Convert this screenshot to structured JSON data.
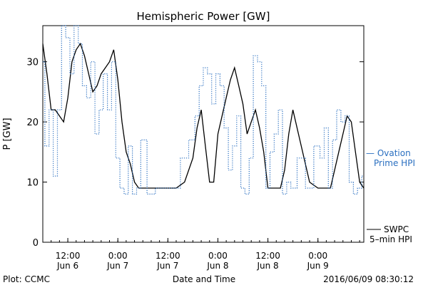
{
  "chart_data": {
    "type": "line",
    "title": "Hemispheric Power [GW]",
    "ylabel": "P [GW]",
    "xlabel": "Date and Time",
    "ylim": [
      0,
      36
    ],
    "yticks": [
      0,
      10,
      20,
      30
    ],
    "xlim": [
      "2016-06-06T06:00",
      "2016-06-09T11:00"
    ],
    "xticks": [
      {
        "time": "2016-06-06T12:00",
        "line1": "12:00",
        "line2": "Jun 6"
      },
      {
        "time": "2016-06-07T00:00",
        "line1": "0:00",
        "line2": "Jun 7"
      },
      {
        "time": "2016-06-07T12:00",
        "line1": "12:00",
        "line2": "Jun 7"
      },
      {
        "time": "2016-06-08T00:00",
        "line1": "0:00",
        "line2": "Jun 8"
      },
      {
        "time": "2016-06-08T12:00",
        "line1": "12:00",
        "line2": "Jun 8"
      },
      {
        "time": "2016-06-09T00:00",
        "line1": "0:00",
        "line2": "Jun 9"
      }
    ],
    "series": [
      {
        "name": "SWPC 5-min HPI",
        "style": "solid",
        "color": "#000000",
        "x": [
          "2016-06-06T06:00",
          "2016-06-06T07:00",
          "2016-06-06T08:00",
          "2016-06-06T09:00",
          "2016-06-06T10:00",
          "2016-06-06T11:00",
          "2016-06-06T12:00",
          "2016-06-06T13:00",
          "2016-06-06T14:00",
          "2016-06-06T15:00",
          "2016-06-06T16:00",
          "2016-06-06T17:00",
          "2016-06-06T18:00",
          "2016-06-06T19:00",
          "2016-06-06T20:00",
          "2016-06-06T21:00",
          "2016-06-06T22:00",
          "2016-06-06T23:00",
          "2016-06-07T00:00",
          "2016-06-07T01:00",
          "2016-06-07T02:00",
          "2016-06-07T03:00",
          "2016-06-07T04:00",
          "2016-06-07T05:00",
          "2016-06-07T06:00",
          "2016-06-07T08:00",
          "2016-06-07T10:00",
          "2016-06-07T12:00",
          "2016-06-07T14:00",
          "2016-06-07T16:00",
          "2016-06-07T18:00",
          "2016-06-07T19:00",
          "2016-06-07T20:00",
          "2016-06-07T21:00",
          "2016-06-07T22:00",
          "2016-06-07T23:00",
          "2016-06-08T00:00",
          "2016-06-08T01:00",
          "2016-06-08T02:00",
          "2016-06-08T03:00",
          "2016-06-08T04:00",
          "2016-06-08T05:00",
          "2016-06-08T06:00",
          "2016-06-08T07:00",
          "2016-06-08T08:00",
          "2016-06-08T09:00",
          "2016-06-08T10:00",
          "2016-06-08T11:00",
          "2016-06-08T12:00",
          "2016-06-08T13:00",
          "2016-06-08T14:00",
          "2016-06-08T15:00",
          "2016-06-08T16:00",
          "2016-06-08T17:00",
          "2016-06-08T18:00",
          "2016-06-08T20:00",
          "2016-06-08T22:00",
          "2016-06-09T00:00",
          "2016-06-09T01:00",
          "2016-06-09T02:00",
          "2016-06-09T03:00",
          "2016-06-09T04:00",
          "2016-06-09T05:00",
          "2016-06-09T06:00",
          "2016-06-09T07:00",
          "2016-06-09T08:00",
          "2016-06-09T09:00",
          "2016-06-09T10:00",
          "2016-06-09T11:00"
        ],
        "values": [
          33,
          28,
          22,
          22,
          21,
          20,
          24,
          30,
          32,
          33,
          31,
          28,
          25,
          26,
          28,
          29,
          30,
          32,
          27,
          20,
          15,
          13,
          10,
          9,
          9,
          9,
          9,
          9,
          9,
          10,
          14,
          19,
          22,
          16,
          10,
          10,
          18,
          21,
          24,
          27,
          29,
          26,
          23,
          18,
          20,
          22,
          19,
          15,
          9,
          9,
          9,
          9,
          12,
          18,
          22,
          16,
          10,
          9,
          9,
          9,
          9,
          12,
          15,
          18,
          21,
          20,
          15,
          10,
          9
        ]
      },
      {
        "name": "Ovation Prime HPI",
        "style": "dotted",
        "color": "#2a6fc0",
        "x": [
          "2016-06-06T06:00",
          "2016-06-06T07:00",
          "2016-06-06T08:00",
          "2016-06-06T09:00",
          "2016-06-06T10:00",
          "2016-06-06T11:00",
          "2016-06-06T12:00",
          "2016-06-06T13:00",
          "2016-06-06T14:00",
          "2016-06-06T15:00",
          "2016-06-06T16:00",
          "2016-06-06T17:00",
          "2016-06-06T18:00",
          "2016-06-06T19:00",
          "2016-06-06T20:00",
          "2016-06-06T21:00",
          "2016-06-06T22:00",
          "2016-06-06T23:00",
          "2016-06-07T00:00",
          "2016-06-07T01:00",
          "2016-06-07T02:00",
          "2016-06-07T03:00",
          "2016-06-07T04:00",
          "2016-06-07T05:00",
          "2016-06-07T06:00",
          "2016-06-07T08:00",
          "2016-06-07T10:00",
          "2016-06-07T12:00",
          "2016-06-07T14:00",
          "2016-06-07T16:00",
          "2016-06-07T18:00",
          "2016-06-07T19:00",
          "2016-06-07T20:00",
          "2016-06-07T21:00",
          "2016-06-07T22:00",
          "2016-06-07T23:00",
          "2016-06-08T00:00",
          "2016-06-08T01:00",
          "2016-06-08T02:00",
          "2016-06-08T03:00",
          "2016-06-08T04:00",
          "2016-06-08T05:00",
          "2016-06-08T06:00",
          "2016-06-08T07:00",
          "2016-06-08T08:00",
          "2016-06-08T09:00",
          "2016-06-08T10:00",
          "2016-06-08T11:00",
          "2016-06-08T12:00",
          "2016-06-08T13:00",
          "2016-06-08T14:00",
          "2016-06-08T15:00",
          "2016-06-08T16:00",
          "2016-06-08T17:00",
          "2016-06-08T18:00",
          "2016-06-08T20:00",
          "2016-06-08T22:00",
          "2016-06-09T00:00",
          "2016-06-09T01:00",
          "2016-06-09T02:00",
          "2016-06-09T03:00",
          "2016-06-09T04:00",
          "2016-06-09T05:00",
          "2016-06-09T06:00",
          "2016-06-09T07:00",
          "2016-06-09T08:00",
          "2016-06-09T09:00",
          "2016-06-09T10:00",
          "2016-06-09T11:00"
        ],
        "values": [
          30,
          16,
          22,
          11,
          22,
          36,
          34,
          28,
          36,
          33,
          26,
          24,
          30,
          18,
          22,
          28,
          22,
          30,
          14,
          9,
          8,
          16,
          8,
          9,
          17,
          8,
          9,
          9,
          9,
          14,
          17,
          21,
          26,
          29,
          28,
          23,
          28,
          26,
          19,
          12,
          16,
          21,
          9,
          8,
          14,
          31,
          30,
          26,
          9,
          15,
          18,
          22,
          8,
          10,
          9,
          14,
          9,
          16,
          14,
          19,
          9,
          17,
          22,
          20,
          21,
          10,
          8,
          9,
          11
        ]
      }
    ],
    "legend": [
      {
        "line1": "— Ovation",
        "line2": "Prime HPI",
        "style": "dotted",
        "color": "#2a6fc0"
      },
      {
        "line1": "SWPC",
        "line2": "5–min HPI",
        "style": "solid",
        "color": "#000000"
      }
    ],
    "legend_placement": "right",
    "grid": false
  },
  "footer": {
    "left": "Plot: CCMC",
    "center": "Date and Time",
    "right": "2016/06/09 08:30:12"
  }
}
